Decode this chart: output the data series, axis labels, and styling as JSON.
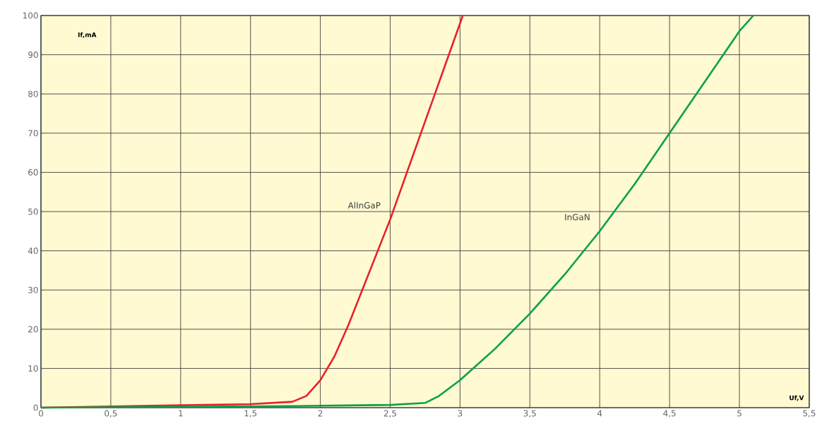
{
  "chart_data": {
    "type": "line",
    "xlabel": "Uf,V",
    "ylabel": "If,mA",
    "xlim": [
      0,
      5.5
    ],
    "ylim": [
      0,
      100
    ],
    "xticks": [
      0,
      {
        "value": 0.5,
        "label": "0,5"
      },
      1,
      {
        "value": 1.5,
        "label": "1,5"
      },
      2,
      {
        "value": 2.5,
        "label": "2,5"
      },
      3,
      {
        "value": 3.5,
        "label": "3,5"
      },
      4,
      {
        "value": 4.5,
        "label": "4,5"
      },
      5,
      {
        "value": 5.5,
        "label": "5,5"
      }
    ],
    "yticks": [
      0,
      10,
      20,
      30,
      40,
      50,
      60,
      70,
      80,
      90,
      100
    ],
    "grid": true,
    "marker": "none",
    "line_style": "solid",
    "series": [
      {
        "name": "AlInGaP",
        "color": "#e8202a",
        "x": [
          0,
          0.5,
          1,
          1.5,
          1.8,
          1.9,
          2,
          2.1,
          2.2,
          2.3,
          2.4,
          2.5,
          2.6,
          2.7,
          2.8,
          2.9,
          3.02
        ],
        "values": [
          0,
          0.3,
          0.6,
          0.9,
          1.5,
          3,
          7,
          13,
          21,
          30,
          39,
          48,
          58,
          68,
          78,
          88,
          100
        ]
      },
      {
        "name": "InGaN",
        "color": "#0aa04a",
        "x": [
          0,
          1.8,
          2.5,
          2.75,
          2.85,
          3,
          3.25,
          3.5,
          3.75,
          4,
          4.25,
          4.5,
          4.75,
          5,
          5.1
        ],
        "values": [
          0,
          0.4,
          0.7,
          1.2,
          3,
          7,
          15,
          24,
          34,
          45,
          57,
          70,
          83,
          96,
          100
        ]
      }
    ]
  }
}
